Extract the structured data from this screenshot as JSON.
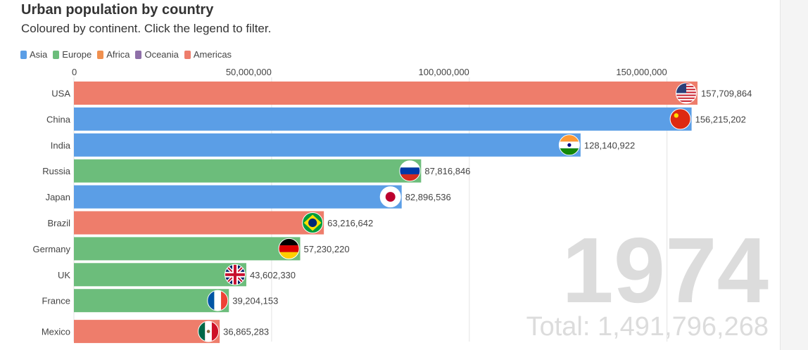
{
  "title": "Urban population by country",
  "subtitle": "Coloured by continent. Click the legend to filter.",
  "legend": [
    {
      "name": "Asia",
      "color": "#5b9ee6"
    },
    {
      "name": "Europe",
      "color": "#6cbd7b"
    },
    {
      "name": "Africa",
      "color": "#f0904f"
    },
    {
      "name": "Oceania",
      "color": "#8e6fa8"
    },
    {
      "name": "Americas",
      "color": "#ee7d6b"
    }
  ],
  "year": "1974",
  "total": "Total: 1,491,796,268",
  "chart_data": {
    "type": "bar",
    "orientation": "horizontal",
    "title": "Urban population by country",
    "subtitle": "Coloured by continent. Click the legend to filter.",
    "xlim": [
      0,
      157709864
    ],
    "x_ticks": [
      0,
      50000000,
      100000000,
      150000000
    ],
    "x_tick_labels": [
      "0",
      "50,000,000",
      "100,000,000",
      "150,000,000"
    ],
    "categories": [
      "USA",
      "China",
      "India",
      "Russia",
      "Japan",
      "Brazil",
      "Germany",
      "UK",
      "France",
      "Mexico"
    ],
    "values": [
      157709864,
      156215202,
      128140922,
      87816846,
      82896536,
      63216642,
      57230220,
      43602330,
      39204153,
      36865283
    ],
    "value_labels": [
      "157,709,864",
      "156,215,202",
      "128,140,922",
      "87,816,846",
      "82,896,536",
      "63,216,642",
      "57,230,220",
      "43,602,330",
      "39,204,153",
      "36,865,283"
    ],
    "continents": [
      "Americas",
      "Asia",
      "Asia",
      "Europe",
      "Asia",
      "Americas",
      "Europe",
      "Europe",
      "Europe",
      "Americas"
    ],
    "flag_icons": [
      "usa-flag-icon",
      "china-flag-icon",
      "india-flag-icon",
      "russia-flag-icon",
      "japan-flag-icon",
      "brazil-flag-icon",
      "germany-flag-icon",
      "uk-flag-icon",
      "france-flag-icon",
      "mexico-flag-icon"
    ],
    "grid": true,
    "axis_position": "top"
  }
}
